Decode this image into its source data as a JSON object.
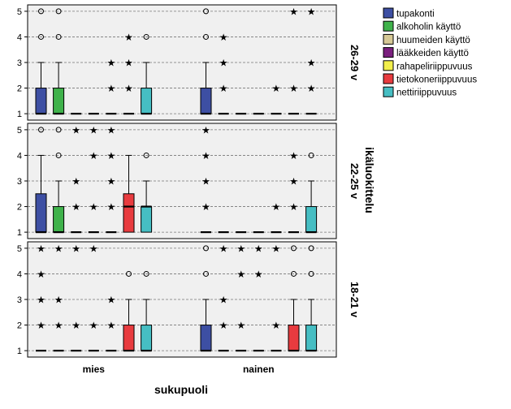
{
  "chart_data": {
    "type": "boxplot",
    "xlabel": "sukupuoli",
    "facet_label": "ikäluokittelu",
    "categories": [
      "mies",
      "nainen"
    ],
    "yticks": [
      1,
      2,
      3,
      4,
      5
    ],
    "ylim": [
      0.75,
      5.25
    ],
    "legend": [
      {
        "name": "tupakonti",
        "color": "#3d4fa3"
      },
      {
        "name": "alkoholin käyttö",
        "color": "#3fb24b"
      },
      {
        "name": "huumeiden käyttö",
        "color": "#d6c996"
      },
      {
        "name": "lääkkeiden käyttö",
        "color": "#7a1f7e"
      },
      {
        "name": "rahapeliriippuvuus",
        "color": "#f2ef4b"
      },
      {
        "name": "tietokoneriippuvuus",
        "color": "#e83b3f"
      },
      {
        "name": "nettiriippuvuus",
        "color": "#46bec3"
      }
    ],
    "panels": [
      {
        "label": "26-29 v",
        "groups": [
          {
            "category": "mies",
            "series": [
              {
                "q1": 1,
                "median": 1,
                "q3": 2,
                "whisker_low": 1,
                "whisker_high": 3,
                "outliers": [
                  {
                    "y": 4,
                    "m": "o"
                  },
                  {
                    "y": 5,
                    "m": "o"
                  }
                ]
              },
              {
                "q1": 1,
                "median": 1,
                "q3": 2,
                "whisker_low": 1,
                "whisker_high": 3,
                "outliers": [
                  {
                    "y": 4,
                    "m": "o"
                  },
                  {
                    "y": 5,
                    "m": "o"
                  }
                ]
              },
              {
                "q1": 1,
                "median": 1,
                "q3": 1,
                "whisker_low": 1,
                "whisker_high": 1,
                "outliers": []
              },
              {
                "q1": 1,
                "median": 1,
                "q3": 1,
                "whisker_low": 1,
                "whisker_high": 1,
                "outliers": []
              },
              {
                "q1": 1,
                "median": 1,
                "q3": 1,
                "whisker_low": 1,
                "whisker_high": 1,
                "outliers": [
                  {
                    "y": 2,
                    "m": "*"
                  },
                  {
                    "y": 3,
                    "m": "*"
                  }
                ]
              },
              {
                "q1": 1,
                "median": 1,
                "q3": 1,
                "whisker_low": 1,
                "whisker_high": 1,
                "outliers": [
                  {
                    "y": 2,
                    "m": "*"
                  },
                  {
                    "y": 3,
                    "m": "*"
                  },
                  {
                    "y": 4,
                    "m": "*"
                  }
                ]
              },
              {
                "q1": 1,
                "median": 1,
                "q3": 2,
                "whisker_low": 1,
                "whisker_high": 3,
                "outliers": [
                  {
                    "y": 4,
                    "m": "o"
                  }
                ]
              }
            ]
          },
          {
            "category": "nainen",
            "series": [
              {
                "q1": 1,
                "median": 1,
                "q3": 2,
                "whisker_low": 1,
                "whisker_high": 3,
                "outliers": [
                  {
                    "y": 4,
                    "m": "o"
                  },
                  {
                    "y": 5,
                    "m": "o"
                  }
                ]
              },
              {
                "q1": 1,
                "median": 1,
                "q3": 1,
                "whisker_low": 1,
                "whisker_high": 1,
                "outliers": [
                  {
                    "y": 2,
                    "m": "*"
                  },
                  {
                    "y": 3,
                    "m": "*"
                  },
                  {
                    "y": 4,
                    "m": "*"
                  }
                ]
              },
              {
                "q1": 1,
                "median": 1,
                "q3": 1,
                "whisker_low": 1,
                "whisker_high": 1,
                "outliers": []
              },
              {
                "q1": 1,
                "median": 1,
                "q3": 1,
                "whisker_low": 1,
                "whisker_high": 1,
                "outliers": []
              },
              {
                "q1": 1,
                "median": 1,
                "q3": 1,
                "whisker_low": 1,
                "whisker_high": 1,
                "outliers": [
                  {
                    "y": 2,
                    "m": "*"
                  }
                ]
              },
              {
                "q1": 1,
                "median": 1,
                "q3": 1,
                "whisker_low": 1,
                "whisker_high": 1,
                "outliers": [
                  {
                    "y": 2,
                    "m": "*"
                  },
                  {
                    "y": 5,
                    "m": "*"
                  }
                ]
              },
              {
                "q1": 1,
                "median": 1,
                "q3": 1,
                "whisker_low": 1,
                "whisker_high": 1,
                "outliers": [
                  {
                    "y": 2,
                    "m": "*"
                  },
                  {
                    "y": 3,
                    "m": "*"
                  },
                  {
                    "y": 5,
                    "m": "*"
                  }
                ]
              }
            ]
          }
        ]
      },
      {
        "label": "22-25 v",
        "groups": [
          {
            "category": "mies",
            "series": [
              {
                "q1": 1,
                "median": 1,
                "q3": 2.5,
                "whisker_low": 1,
                "whisker_high": 4,
                "outliers": [
                  {
                    "y": 5,
                    "m": "o"
                  }
                ]
              },
              {
                "q1": 1,
                "median": 1,
                "q3": 2,
                "whisker_low": 1,
                "whisker_high": 3,
                "outliers": [
                  {
                    "y": 4,
                    "m": "o"
                  },
                  {
                    "y": 5,
                    "m": "o"
                  }
                ]
              },
              {
                "q1": 1,
                "median": 1,
                "q3": 1,
                "whisker_low": 1,
                "whisker_high": 1,
                "outliers": [
                  {
                    "y": 2,
                    "m": "*"
                  },
                  {
                    "y": 3,
                    "m": "*"
                  },
                  {
                    "y": 5,
                    "m": "*"
                  }
                ]
              },
              {
                "q1": 1,
                "median": 1,
                "q3": 1,
                "whisker_low": 1,
                "whisker_high": 1,
                "outliers": [
                  {
                    "y": 2,
                    "m": "*"
                  },
                  {
                    "y": 4,
                    "m": "*"
                  },
                  {
                    "y": 5,
                    "m": "*"
                  }
                ]
              },
              {
                "q1": 1,
                "median": 1,
                "q3": 1,
                "whisker_low": 1,
                "whisker_high": 1,
                "outliers": [
                  {
                    "y": 2,
                    "m": "*"
                  },
                  {
                    "y": 3,
                    "m": "*"
                  },
                  {
                    "y": 4,
                    "m": "*"
                  },
                  {
                    "y": 5,
                    "m": "*"
                  }
                ]
              },
              {
                "q1": 1,
                "median": 2,
                "q3": 2.5,
                "whisker_low": 1,
                "whisker_high": 4,
                "outliers": []
              },
              {
                "q1": 1,
                "median": 2,
                "q3": 2,
                "whisker_low": 1,
                "whisker_high": 3,
                "outliers": [
                  {
                    "y": 4,
                    "m": "o"
                  }
                ]
              }
            ]
          },
          {
            "category": "nainen",
            "series": [
              {
                "q1": 1,
                "median": 1,
                "q3": 1,
                "whisker_low": 1,
                "whisker_high": 1,
                "outliers": [
                  {
                    "y": 2,
                    "m": "*"
                  },
                  {
                    "y": 3,
                    "m": "*"
                  },
                  {
                    "y": 4,
                    "m": "*"
                  },
                  {
                    "y": 5,
                    "m": "*"
                  }
                ]
              },
              {
                "q1": 1,
                "median": 1,
                "q3": 1,
                "whisker_low": 1,
                "whisker_high": 1,
                "outliers": []
              },
              {
                "q1": 1,
                "median": 1,
                "q3": 1,
                "whisker_low": 1,
                "whisker_high": 1,
                "outliers": []
              },
              {
                "q1": 1,
                "median": 1,
                "q3": 1,
                "whisker_low": 1,
                "whisker_high": 1,
                "outliers": []
              },
              {
                "q1": 1,
                "median": 1,
                "q3": 1,
                "whisker_low": 1,
                "whisker_high": 1,
                "outliers": [
                  {
                    "y": 2,
                    "m": "*"
                  }
                ]
              },
              {
                "q1": 1,
                "median": 1,
                "q3": 1,
                "whisker_low": 1,
                "whisker_high": 1,
                "outliers": [
                  {
                    "y": 2,
                    "m": "*"
                  },
                  {
                    "y": 3,
                    "m": "*"
                  },
                  {
                    "y": 4,
                    "m": "*"
                  }
                ]
              },
              {
                "q1": 1,
                "median": 1,
                "q3": 2,
                "whisker_low": 1,
                "whisker_high": 3,
                "outliers": [
                  {
                    "y": 4,
                    "m": "o"
                  }
                ]
              }
            ]
          }
        ]
      },
      {
        "label": "18-21 v",
        "groups": [
          {
            "category": "mies",
            "series": [
              {
                "q1": 1,
                "median": 1,
                "q3": 1,
                "whisker_low": 1,
                "whisker_high": 1,
                "outliers": [
                  {
                    "y": 2,
                    "m": "*"
                  },
                  {
                    "y": 3,
                    "m": "*"
                  },
                  {
                    "y": 4,
                    "m": "*"
                  },
                  {
                    "y": 5,
                    "m": "*"
                  }
                ]
              },
              {
                "q1": 1,
                "median": 1,
                "q3": 1,
                "whisker_low": 1,
                "whisker_high": 1,
                "outliers": [
                  {
                    "y": 2,
                    "m": "*"
                  },
                  {
                    "y": 3,
                    "m": "*"
                  },
                  {
                    "y": 5,
                    "m": "*"
                  }
                ]
              },
              {
                "q1": 1,
                "median": 1,
                "q3": 1,
                "whisker_low": 1,
                "whisker_high": 1,
                "outliers": [
                  {
                    "y": 2,
                    "m": "*"
                  },
                  {
                    "y": 5,
                    "m": "*"
                  }
                ]
              },
              {
                "q1": 1,
                "median": 1,
                "q3": 1,
                "whisker_low": 1,
                "whisker_high": 1,
                "outliers": [
                  {
                    "y": 2,
                    "m": "*"
                  },
                  {
                    "y": 5,
                    "m": "*"
                  }
                ]
              },
              {
                "q1": 1,
                "median": 1,
                "q3": 1,
                "whisker_low": 1,
                "whisker_high": 1,
                "outliers": [
                  {
                    "y": 2,
                    "m": "*"
                  },
                  {
                    "y": 3,
                    "m": "*"
                  }
                ]
              },
              {
                "q1": 1,
                "median": 1,
                "q3": 2,
                "whisker_low": 1,
                "whisker_high": 3,
                "outliers": [
                  {
                    "y": 4,
                    "m": "o"
                  }
                ]
              },
              {
                "q1": 1,
                "median": 1,
                "q3": 2,
                "whisker_low": 1,
                "whisker_high": 3,
                "outliers": [
                  {
                    "y": 4,
                    "m": "o"
                  }
                ]
              }
            ]
          },
          {
            "category": "nainen",
            "series": [
              {
                "q1": 1,
                "median": 1,
                "q3": 2,
                "whisker_low": 1,
                "whisker_high": 3,
                "outliers": [
                  {
                    "y": 4,
                    "m": "o"
                  },
                  {
                    "y": 5,
                    "m": "o"
                  }
                ]
              },
              {
                "q1": 1,
                "median": 1,
                "q3": 1,
                "whisker_low": 1,
                "whisker_high": 1,
                "outliers": [
                  {
                    "y": 2,
                    "m": "*"
                  },
                  {
                    "y": 3,
                    "m": "*"
                  },
                  {
                    "y": 5,
                    "m": "*"
                  }
                ]
              },
              {
                "q1": 1,
                "median": 1,
                "q3": 1,
                "whisker_low": 1,
                "whisker_high": 1,
                "outliers": [
                  {
                    "y": 2,
                    "m": "*"
                  },
                  {
                    "y": 4,
                    "m": "*"
                  },
                  {
                    "y": 5,
                    "m": "*"
                  }
                ]
              },
              {
                "q1": 1,
                "median": 1,
                "q3": 1,
                "whisker_low": 1,
                "whisker_high": 1,
                "outliers": [
                  {
                    "y": 4,
                    "m": "*"
                  },
                  {
                    "y": 5,
                    "m": "*"
                  }
                ]
              },
              {
                "q1": 1,
                "median": 1,
                "q3": 1,
                "whisker_low": 1,
                "whisker_high": 1,
                "outliers": [
                  {
                    "y": 2,
                    "m": "*"
                  },
                  {
                    "y": 5,
                    "m": "*"
                  }
                ]
              },
              {
                "q1": 1,
                "median": 1,
                "q3": 2,
                "whisker_low": 1,
                "whisker_high": 3,
                "outliers": [
                  {
                    "y": 4,
                    "m": "o"
                  },
                  {
                    "y": 5,
                    "m": "o"
                  }
                ]
              },
              {
                "q1": 1,
                "median": 1,
                "q3": 2,
                "whisker_low": 1,
                "whisker_high": 3,
                "outliers": [
                  {
                    "y": 4,
                    "m": "o"
                  },
                  {
                    "y": 5,
                    "m": "o"
                  }
                ]
              }
            ]
          }
        ]
      }
    ]
  }
}
